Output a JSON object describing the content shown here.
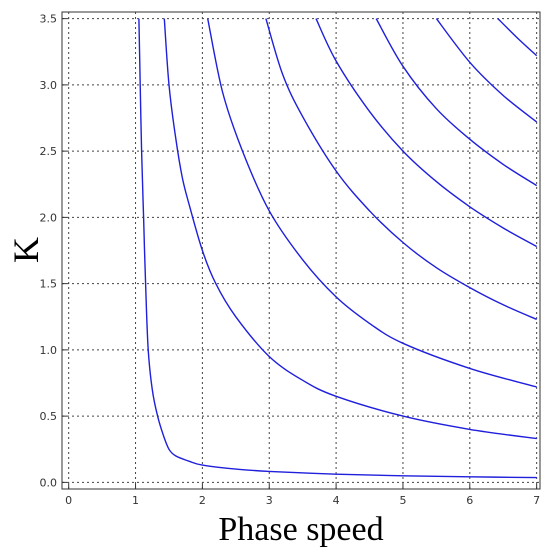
{
  "chart_data": {
    "type": "line",
    "title": "",
    "xlabel": "Phase speed",
    "ylabel": "K",
    "xlim": [
      -0.1,
      7.05
    ],
    "ylim": [
      -0.05,
      3.55
    ],
    "x_ticks": [
      0,
      1,
      2,
      3,
      4,
      5,
      6,
      7
    ],
    "y_ticks": [
      0.0,
      0.5,
      1.0,
      1.5,
      2.0,
      2.5,
      3.0,
      3.5
    ],
    "x_tick_labels": [
      "0",
      "1",
      "2",
      "3",
      "4",
      "5",
      "6",
      "7"
    ],
    "y_tick_labels": [
      "0.0",
      "0.5",
      "1.0",
      "1.5",
      "2.0",
      "2.5",
      "3.0",
      "3.5"
    ],
    "grid": true,
    "grid_style": "dotted",
    "line_color": "#1f1fdc",
    "series": [
      {
        "x": [
          1.05,
          1.07,
          1.09,
          1.12,
          1.15,
          1.19,
          1.25,
          1.33,
          1.42,
          1.5,
          1.6,
          1.8,
          2.0,
          2.5,
          3.0,
          4.0,
          5.0,
          6.0,
          7.0
        ],
        "y": [
          3.5,
          3.0,
          2.5,
          2.0,
          1.5,
          1.0,
          0.7,
          0.5,
          0.35,
          0.25,
          0.2,
          0.16,
          0.13,
          0.1,
          0.083,
          0.062,
          0.05,
          0.042,
          0.036
        ]
      },
      {
        "x": [
          1.43,
          1.5,
          1.6,
          1.7,
          1.8,
          2.0,
          2.2,
          2.5,
          3.0,
          3.5,
          4.0,
          5.0,
          6.0,
          7.0
        ],
        "y": [
          3.5,
          3.0,
          2.6,
          2.3,
          2.1,
          1.75,
          1.5,
          1.25,
          0.95,
          0.77,
          0.65,
          0.5,
          0.4,
          0.33
        ]
      },
      {
        "x": [
          2.08,
          2.3,
          2.6,
          3.0,
          3.5,
          4.0,
          4.5,
          5.0,
          6.0,
          7.0
        ],
        "y": [
          3.5,
          2.95,
          2.5,
          2.05,
          1.68,
          1.4,
          1.2,
          1.05,
          0.86,
          0.72
        ]
      },
      {
        "x": [
          2.95,
          3.2,
          3.5,
          4.0,
          4.5,
          5.0,
          5.5,
          6.0,
          6.5,
          7.0
        ],
        "y": [
          3.5,
          3.08,
          2.76,
          2.35,
          2.05,
          1.81,
          1.62,
          1.47,
          1.34,
          1.23
        ]
      },
      {
        "x": [
          3.7,
          4.0,
          4.5,
          5.0,
          5.5,
          6.0,
          6.5,
          7.0
        ],
        "y": [
          3.5,
          3.18,
          2.8,
          2.5,
          2.27,
          2.08,
          1.92,
          1.78
        ]
      },
      {
        "x": [
          4.6,
          5.0,
          5.5,
          6.0,
          6.5,
          7.0
        ],
        "y": [
          3.5,
          3.14,
          2.82,
          2.59,
          2.4,
          2.24
        ]
      },
      {
        "x": [
          5.5,
          6.0,
          6.5,
          7.0
        ],
        "y": [
          3.5,
          3.17,
          2.92,
          2.72
        ]
      },
      {
        "x": [
          6.42,
          6.7,
          7.0
        ],
        "y": [
          3.5,
          3.36,
          3.22
        ]
      }
    ]
  }
}
